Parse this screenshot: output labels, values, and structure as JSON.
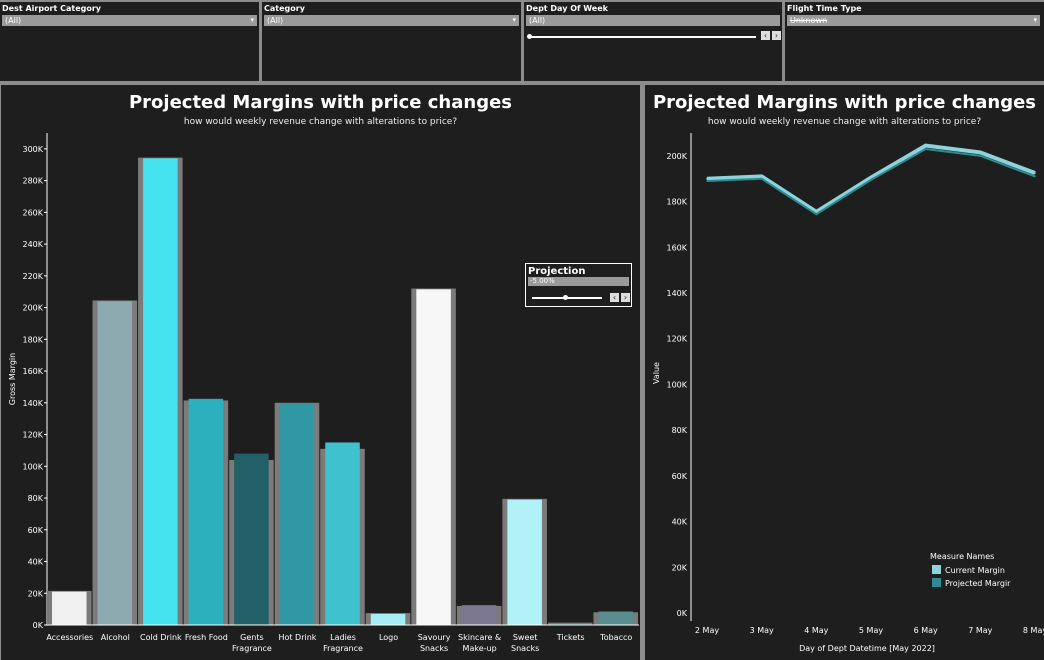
{
  "filters": [
    {
      "label": "Dest Airport Category",
      "value": "(All)"
    },
    {
      "label": "Category",
      "value": "(All)"
    },
    {
      "label": "Dept Day Of Week",
      "value": "(All)"
    },
    {
      "label": "Flight Time Type",
      "value": "Unknown"
    }
  ],
  "left_panel": {
    "title": "Projected Margins with price changes",
    "subtitle": "how would weekly revenue change with alterations to price?"
  },
  "right_panel": {
    "title": "Projected Margins with price changes",
    "subtitle": "how would weekly revenue change with alterations to price?"
  },
  "projection": {
    "label": "Projection",
    "value": "-5.00%",
    "fraction": 0.47
  },
  "colors": {
    "background": "#1e1e1e",
    "divider": "#8c8c8c",
    "shadow_bar": "#7b7b7b",
    "line_current": "#8fd3da",
    "line_projected": "#2e8b93"
  },
  "chart_data": [
    {
      "type": "bar",
      "ylabel": "Gross Margin",
      "ylim": [
        0,
        310000
      ],
      "yticks": [
        "0K",
        "20K",
        "40K",
        "60K",
        "80K",
        "100K",
        "120K",
        "140K",
        "160K",
        "180K",
        "200K",
        "220K",
        "240K",
        "260K",
        "280K",
        "300K"
      ],
      "categories": [
        "Accessories",
        "Alcohol",
        "Cold Drink",
        "Fresh Food",
        "Gents Fragrance",
        "Hot Drink",
        "Ladies Fragrance",
        "Logo",
        "Savoury Snacks",
        "Skincare & Make-up",
        "Sweet Snacks",
        "Tickets",
        "Tobacco"
      ],
      "category_lines": [
        [
          "Accessories"
        ],
        [
          "Alcohol"
        ],
        [
          "Cold Drink"
        ],
        [
          "Fresh Food"
        ],
        [
          "Gents",
          "Fragrance"
        ],
        [
          "Hot Drink"
        ],
        [
          "Ladies",
          "Fragrance"
        ],
        [
          "Logo"
        ],
        [
          "Savoury",
          "Snacks"
        ],
        [
          "Skincare &",
          "Make-up"
        ],
        [
          "Sweet",
          "Snacks"
        ],
        [
          "Tickets"
        ],
        [
          "Tobacco"
        ]
      ],
      "series": [
        {
          "name": "Current Margin",
          "values": [
            21500,
            204500,
            294500,
            141500,
            104000,
            140000,
            111000,
            7500,
            212000,
            12000,
            79500,
            1500,
            8000
          ]
        },
        {
          "name": "Projected Margin",
          "values": [
            21000,
            204000,
            294000,
            142500,
            108000,
            139500,
            115000,
            7000,
            211500,
            12500,
            79000,
            1000,
            8500
          ]
        }
      ],
      "bar_colors": [
        "#f0f0f0",
        "#8daab0",
        "#45e2ef",
        "#2cb0be",
        "#235f66",
        "#2f98a4",
        "#40c2ce",
        "#a6eef5",
        "#f7f7f7",
        "#7b7790",
        "#b0f2f7",
        "#5a7f82",
        "#5a8d92"
      ]
    },
    {
      "type": "line",
      "xlabel": "Day of Dept Datetime [May 2022]",
      "ylabel": "Value",
      "ylim": [
        0,
        210000
      ],
      "yticks": [
        "0K",
        "20K",
        "40K",
        "60K",
        "80K",
        "100K",
        "120K",
        "140K",
        "160K",
        "180K",
        "200K"
      ],
      "x": [
        "2 May",
        "3 May",
        "4 May",
        "5 May",
        "6 May",
        "7 May",
        "8 May"
      ],
      "legend_title": "Measure Names",
      "legend_position": "bottom-right",
      "series": [
        {
          "name": "Current Margin",
          "values": [
            190000,
            191000,
            175500,
            190500,
            204500,
            201500,
            192500
          ]
        },
        {
          "name": "Projected Margir",
          "values": [
            189000,
            190000,
            174500,
            189500,
            203000,
            200000,
            191000
          ]
        }
      ]
    }
  ]
}
